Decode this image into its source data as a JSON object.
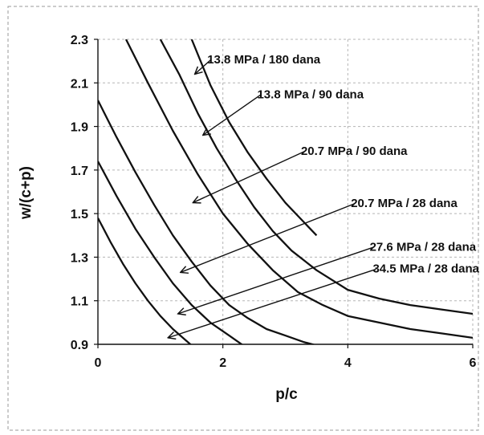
{
  "chart_data": {
    "type": "line",
    "title": "",
    "xlabel": "p/c",
    "ylabel": "w/(c+p)",
    "xlim": [
      0,
      6
    ],
    "ylim": [
      0.9,
      2.3
    ],
    "x_ticks": [
      "0",
      "2",
      "4",
      "6"
    ],
    "y_ticks": [
      "0.9",
      "1.1",
      "1.3",
      "1.5",
      "1.7",
      "1.9",
      "2.1",
      "2.3"
    ],
    "grid": "dashed major gridlines",
    "line_color": "#111111",
    "series": [
      {
        "name": "34.5 MPa / 28 dana",
        "x": [
          0.0,
          0.2,
          0.4,
          0.6,
          0.8,
          1.0,
          1.2,
          1.4,
          1.6
        ],
        "y": [
          1.48,
          1.37,
          1.27,
          1.18,
          1.1,
          1.03,
          0.97,
          0.92,
          0.87
        ]
      },
      {
        "name": "27.6 MPa / 28 dana",
        "x": [
          0.0,
          0.3,
          0.6,
          0.9,
          1.2,
          1.5,
          1.8,
          2.1,
          2.35
        ],
        "y": [
          1.74,
          1.58,
          1.43,
          1.3,
          1.18,
          1.08,
          1.0,
          0.94,
          0.89
        ]
      },
      {
        "name": "20.7 MPa / 28 dana",
        "x": [
          0.0,
          0.3,
          0.6,
          0.9,
          1.2,
          1.5,
          1.8,
          2.1,
          2.4,
          2.7,
          3.0,
          3.3,
          3.7
        ],
        "y": [
          2.02,
          1.85,
          1.69,
          1.54,
          1.4,
          1.28,
          1.17,
          1.08,
          1.02,
          0.97,
          0.94,
          0.91,
          0.88
        ]
      },
      {
        "name": "20.7 MPa / 90 dana",
        "x": [
          0.45,
          0.8,
          1.2,
          1.6,
          2.0,
          2.4,
          2.8,
          3.2,
          3.6,
          4.0,
          4.5,
          5.0,
          5.5,
          6.0
        ],
        "y": [
          2.3,
          2.1,
          1.88,
          1.68,
          1.5,
          1.36,
          1.24,
          1.14,
          1.08,
          1.03,
          1.0,
          0.97,
          0.95,
          0.93
        ]
      },
      {
        "name": "13.8 MPa / 90 dana",
        "x": [
          1.0,
          1.3,
          1.6,
          1.9,
          2.2,
          2.5,
          2.8,
          3.1,
          3.5,
          4.0,
          4.5,
          5.0,
          5.5,
          6.0
        ],
        "y": [
          2.3,
          2.14,
          1.96,
          1.8,
          1.66,
          1.53,
          1.42,
          1.33,
          1.24,
          1.15,
          1.11,
          1.08,
          1.06,
          1.04
        ]
      },
      {
        "name": "13.8 MPa / 180 dana",
        "x": [
          1.5,
          1.8,
          2.1,
          2.4,
          2.7,
          3.0,
          3.3,
          3.5
        ],
        "y": [
          2.3,
          2.09,
          1.92,
          1.78,
          1.66,
          1.55,
          1.46,
          1.4
        ]
      }
    ],
    "annotations": [
      {
        "text": "13.8 MPa / 180 dana",
        "x": 1.75,
        "y": 2.19,
        "arrow_to": [
          1.55,
          2.14
        ]
      },
      {
        "text": "13.8 MPa / 90 dana",
        "x": 2.55,
        "y": 2.03,
        "arrow_to": [
          1.68,
          1.86
        ]
      },
      {
        "text": "20.7 MPa / 90 dana",
        "x": 3.25,
        "y": 1.77,
        "arrow_to": [
          1.52,
          1.55
        ]
      },
      {
        "text": "20.7 MPa / 28 dana",
        "x": 4.05,
        "y": 1.53,
        "arrow_to": [
          1.32,
          1.23
        ]
      },
      {
        "text": "27.6 MPa / 28 dana",
        "x": 4.35,
        "y": 1.33,
        "arrow_to": [
          1.28,
          1.04
        ]
      },
      {
        "text": "34.5 MPa / 28 dana",
        "x": 4.4,
        "y": 1.23,
        "arrow_to": [
          1.12,
          0.93
        ]
      }
    ]
  }
}
